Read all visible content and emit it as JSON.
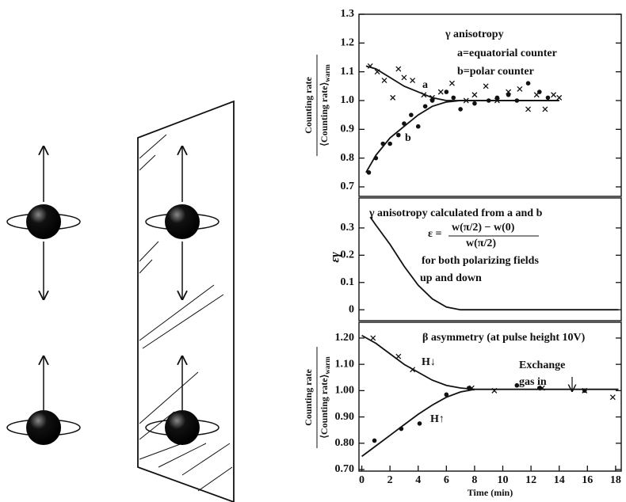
{
  "chart_data": [
    {
      "type": "line",
      "ylabel": {
        "numerator": "Counting rate",
        "denominator": "⟨Counting rate⟩",
        "subscript": "warm"
      },
      "xlim": [
        -0.2,
        18.4
      ],
      "ylim": [
        0.667,
        1.3
      ],
      "yticks": [
        0.7,
        0.8,
        0.9,
        {
          "value": 1,
          "label": "1.0"
        },
        1.1,
        1.2,
        1.3
      ],
      "annotations": [
        "γ anisotropy",
        "a=equatorial counter",
        "b=polar counter",
        "a",
        "b"
      ],
      "series": [
        {
          "style": "x",
          "color": "#111",
          "x": [
            0.6,
            1.1,
            1.6,
            2.2,
            2.6,
            3.0,
            3.6,
            4.4,
            5.0,
            5.6,
            6.4,
            7.4,
            8.0,
            8.8,
            9.6,
            10.4,
            11.2,
            11.8,
            12.4,
            13.0,
            13.6,
            14.0
          ],
          "values": [
            1.12,
            1.1,
            1.07,
            1.01,
            1.11,
            1.08,
            1.07,
            1.02,
            1.01,
            1.03,
            1.06,
            1.0,
            1.02,
            1.05,
            1.0,
            1.03,
            1.04,
            0.97,
            1.02,
            0.97,
            1.02,
            1.01
          ]
        },
        {
          "style": "dot",
          "color": "#111",
          "x": [
            0.5,
            1.0,
            1.5,
            2.0,
            2.6,
            3.0,
            3.5,
            4.0,
            4.5,
            5.0,
            6.0,
            6.5,
            7.0,
            8.0,
            9.0,
            9.6,
            10.4,
            11.0,
            11.8,
            12.6,
            13.2
          ],
          "values": [
            0.75,
            0.8,
            0.85,
            0.85,
            0.88,
            0.92,
            0.95,
            0.91,
            0.98,
            1.0,
            1.03,
            1.01,
            0.97,
            0.99,
            1.0,
            1.01,
            1.02,
            1.0,
            1.06,
            1.03,
            1.01
          ]
        },
        {
          "style": "line",
          "color": "#111",
          "x": [
            0.3,
            1,
            2,
            3,
            4,
            5,
            6,
            8,
            10,
            14
          ],
          "values": [
            1.12,
            1.11,
            1.08,
            1.05,
            1.03,
            1.01,
            1.0,
            1.0,
            1.0,
            1.0
          ]
        },
        {
          "style": "line",
          "color": "#111",
          "x": [
            0.3,
            1,
            2,
            3,
            4,
            5,
            6,
            7,
            8,
            10,
            14
          ],
          "values": [
            0.75,
            0.81,
            0.87,
            0.91,
            0.95,
            0.98,
            0.995,
            1.0,
            1.0,
            1.0,
            1.0
          ]
        }
      ]
    },
    {
      "type": "line",
      "ylabel": "εγ",
      "xlim": [
        -0.2,
        18.4
      ],
      "ylim": [
        -0.04,
        0.41
      ],
      "yticks": [
        0,
        0.1,
        0.2,
        0.3
      ],
      "annotations": [
        "γ anisotropy calculated from a and b",
        "ε =",
        "w(π/2) − w(0)",
        "w(π/2)",
        "for both polarizing fields",
        "up and down"
      ],
      "series": [
        {
          "style": "line",
          "color": "#111",
          "x": [
            0.6,
            1,
            2,
            3,
            4,
            5,
            6,
            7,
            8,
            12,
            18.2
          ],
          "values": [
            0.34,
            0.31,
            0.24,
            0.16,
            0.09,
            0.04,
            0.01,
            0,
            0,
            0,
            0
          ]
        }
      ]
    },
    {
      "type": "line",
      "ylabel": {
        "numerator": "Counting rate",
        "denominator": "⟨Counting rate⟩",
        "subscript": "warm"
      },
      "xlabel": "Time (min)",
      "xlim": [
        -0.2,
        18.4
      ],
      "ylim": [
        0.694,
        1.26
      ],
      "xticks": [
        0,
        2,
        4,
        6,
        8,
        10,
        12,
        14,
        16,
        18
      ],
      "yticks": [
        {
          "value": 0.7,
          "label": "0.70"
        },
        {
          "value": 0.8,
          "label": "0.80"
        },
        {
          "value": 0.9,
          "label": "0.90"
        },
        {
          "value": 1,
          "label": "1.00"
        },
        {
          "value": 1.1,
          "label": "1.10"
        },
        {
          "value": 1.2,
          "label": "1.20"
        }
      ],
      "annotations": [
        "β asymmetry (at pulse height 10V)",
        "H↓",
        "H↑",
        "Exchange",
        "gas in"
      ],
      "series": [
        {
          "style": "x",
          "color": "#111",
          "x": [
            0.8,
            2.6,
            3.6,
            7.8,
            9.4,
            12.8,
            15.8,
            17.8
          ],
          "values": [
            1.2,
            1.13,
            1.08,
            1.01,
            1.0,
            1.01,
            1.0,
            0.975
          ]
        },
        {
          "style": "dot",
          "color": "#111",
          "x": [
            0.9,
            2.8,
            4.1,
            6.0,
            7.6,
            11.0,
            12.6,
            15.8
          ],
          "values": [
            0.81,
            0.855,
            0.875,
            0.985,
            1.01,
            1.02,
            1.01,
            1.0
          ]
        },
        {
          "style": "line",
          "color": "#111",
          "x": [
            0,
            1,
            2,
            3,
            4,
            5,
            6,
            7,
            8
          ],
          "values": [
            1.21,
            1.18,
            1.14,
            1.1,
            1.07,
            1.04,
            1.02,
            1.01,
            1.005
          ]
        },
        {
          "style": "line",
          "color": "#111",
          "x": [
            0,
            1,
            2,
            3,
            4,
            5,
            6,
            7,
            8
          ],
          "values": [
            0.75,
            0.79,
            0.83,
            0.87,
            0.91,
            0.945,
            0.975,
            0.995,
            1.005
          ]
        },
        {
          "style": "line",
          "color": "#111",
          "x": [
            8,
            18.2
          ],
          "values": [
            1.005,
            1.005
          ]
        }
      ]
    }
  ]
}
